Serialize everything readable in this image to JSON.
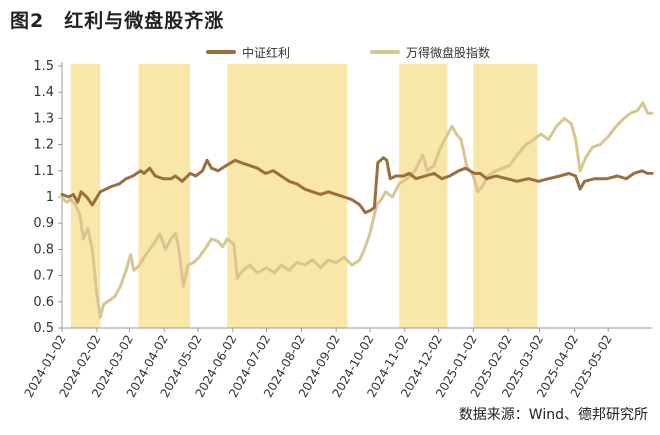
{
  "figure": {
    "title": "图2　红利与微盘股齐涨",
    "source": "数据来源：Wind、德邦研究所"
  },
  "chart_data": {
    "type": "line",
    "title": "图2　红利与微盘股齐涨",
    "xlabel": "",
    "ylabel": "",
    "ylim": [
      0.5,
      1.5
    ],
    "yticks": [
      "0.5",
      "0.6",
      "0.7",
      "0.8",
      "0.9",
      "1",
      "1.1",
      "1.2",
      "1.3",
      "1.4",
      "1.5"
    ],
    "x_ticks": [
      "2024-01-02",
      "2024-02-02",
      "2024-03-02",
      "2024-04-02",
      "2024-05-02",
      "2024-06-02",
      "2024-07-02",
      "2024-08-02",
      "2024-09-02",
      "2024-10-02",
      "2024-11-02",
      "2024-12-02",
      "2025-01-02",
      "2025-02-02",
      "2025-03-02",
      "2025-04-02",
      "2025-05-02"
    ],
    "x_range": [
      "2024-01-02",
      "2025-06-10"
    ],
    "grid": false,
    "legend_position": "top",
    "highlight_periods": [
      [
        "2024-01-10",
        "2024-02-05"
      ],
      [
        "2024-03-10",
        "2024-04-25"
      ],
      [
        "2024-05-28",
        "2024-09-12"
      ],
      [
        "2024-10-28",
        "2024-12-10"
      ],
      [
        "2025-01-02",
        "2025-02-28"
      ]
    ],
    "series": [
      {
        "name": "中证红利",
        "color": "#9a6e3e",
        "points": [
          [
            "2024-01-02",
            1.01
          ],
          [
            "2024-01-08",
            1.0
          ],
          [
            "2024-01-12",
            1.01
          ],
          [
            "2024-01-16",
            0.98
          ],
          [
            "2024-01-19",
            1.02
          ],
          [
            "2024-01-24",
            1.0
          ],
          [
            "2024-01-29",
            0.97
          ],
          [
            "2024-02-05",
            1.02
          ],
          [
            "2024-02-15",
            1.04
          ],
          [
            "2024-02-22",
            1.05
          ],
          [
            "2024-02-28",
            1.07
          ],
          [
            "2024-03-05",
            1.08
          ],
          [
            "2024-03-12",
            1.1
          ],
          [
            "2024-03-15",
            1.09
          ],
          [
            "2024-03-20",
            1.11
          ],
          [
            "2024-03-25",
            1.08
          ],
          [
            "2024-04-01",
            1.07
          ],
          [
            "2024-04-08",
            1.07
          ],
          [
            "2024-04-12",
            1.08
          ],
          [
            "2024-04-18",
            1.06
          ],
          [
            "2024-04-25",
            1.09
          ],
          [
            "2024-04-30",
            1.08
          ],
          [
            "2024-05-06",
            1.1
          ],
          [
            "2024-05-10",
            1.14
          ],
          [
            "2024-05-14",
            1.11
          ],
          [
            "2024-05-20",
            1.1
          ],
          [
            "2024-05-27",
            1.12
          ],
          [
            "2024-06-04",
            1.14
          ],
          [
            "2024-06-10",
            1.13
          ],
          [
            "2024-06-17",
            1.12
          ],
          [
            "2024-06-24",
            1.11
          ],
          [
            "2024-07-01",
            1.09
          ],
          [
            "2024-07-08",
            1.1
          ],
          [
            "2024-07-15",
            1.08
          ],
          [
            "2024-07-22",
            1.06
          ],
          [
            "2024-07-29",
            1.05
          ],
          [
            "2024-08-05",
            1.03
          ],
          [
            "2024-08-12",
            1.02
          ],
          [
            "2024-08-19",
            1.01
          ],
          [
            "2024-08-26",
            1.02
          ],
          [
            "2024-09-02",
            1.01
          ],
          [
            "2024-09-09",
            1.0
          ],
          [
            "2024-09-16",
            0.99
          ],
          [
            "2024-09-23",
            0.97
          ],
          [
            "2024-09-28",
            0.94
          ],
          [
            "2024-10-03",
            0.95
          ],
          [
            "2024-10-06",
            0.96
          ],
          [
            "2024-10-09",
            1.13
          ],
          [
            "2024-10-14",
            1.15
          ],
          [
            "2024-10-17",
            1.14
          ],
          [
            "2024-10-20",
            1.07
          ],
          [
            "2024-10-25",
            1.08
          ],
          [
            "2024-11-01",
            1.08
          ],
          [
            "2024-11-06",
            1.09
          ],
          [
            "2024-11-12",
            1.07
          ],
          [
            "2024-11-20",
            1.08
          ],
          [
            "2024-11-28",
            1.09
          ],
          [
            "2024-12-05",
            1.07
          ],
          [
            "2024-12-12",
            1.08
          ],
          [
            "2024-12-20",
            1.1
          ],
          [
            "2024-12-26",
            1.11
          ],
          [
            "2025-01-03",
            1.09
          ],
          [
            "2025-01-08",
            1.09
          ],
          [
            "2025-01-14",
            1.07
          ],
          [
            "2025-01-22",
            1.08
          ],
          [
            "2025-02-01",
            1.07
          ],
          [
            "2025-02-10",
            1.06
          ],
          [
            "2025-02-20",
            1.07
          ],
          [
            "2025-03-01",
            1.06
          ],
          [
            "2025-03-10",
            1.07
          ],
          [
            "2025-03-20",
            1.08
          ],
          [
            "2025-03-28",
            1.09
          ],
          [
            "2025-04-03",
            1.08
          ],
          [
            "2025-04-07",
            1.03
          ],
          [
            "2025-04-11",
            1.06
          ],
          [
            "2025-04-20",
            1.07
          ],
          [
            "2025-05-01",
            1.07
          ],
          [
            "2025-05-10",
            1.08
          ],
          [
            "2025-05-18",
            1.07
          ],
          [
            "2025-05-25",
            1.09
          ],
          [
            "2025-06-01",
            1.1
          ],
          [
            "2025-06-06",
            1.09
          ],
          [
            "2025-06-10",
            1.09
          ]
        ]
      },
      {
        "name": "万得微盘股指数",
        "color": "#d9c592",
        "points": [
          [
            "2024-01-02",
            1.0
          ],
          [
            "2024-01-06",
            0.98
          ],
          [
            "2024-01-10",
            0.99
          ],
          [
            "2024-01-14",
            0.97
          ],
          [
            "2024-01-18",
            0.93
          ],
          [
            "2024-01-21",
            0.84
          ],
          [
            "2024-01-25",
            0.88
          ],
          [
            "2024-01-29",
            0.8
          ],
          [
            "2024-02-02",
            0.63
          ],
          [
            "2024-02-05",
            0.54
          ],
          [
            "2024-02-08",
            0.59
          ],
          [
            "2024-02-18",
            0.62
          ],
          [
            "2024-02-23",
            0.66
          ],
          [
            "2024-02-28",
            0.72
          ],
          [
            "2024-03-03",
            0.78
          ],
          [
            "2024-03-06",
            0.72
          ],
          [
            "2024-03-11",
            0.74
          ],
          [
            "2024-03-15",
            0.77
          ],
          [
            "2024-03-20",
            0.8
          ],
          [
            "2024-03-25",
            0.83
          ],
          [
            "2024-03-29",
            0.86
          ],
          [
            "2024-04-03",
            0.8
          ],
          [
            "2024-04-08",
            0.84
          ],
          [
            "2024-04-12",
            0.86
          ],
          [
            "2024-04-15",
            0.8
          ],
          [
            "2024-04-19",
            0.66
          ],
          [
            "2024-04-23",
            0.74
          ],
          [
            "2024-04-28",
            0.75
          ],
          [
            "2024-05-03",
            0.77
          ],
          [
            "2024-05-08",
            0.8
          ],
          [
            "2024-05-14",
            0.84
          ],
          [
            "2024-05-20",
            0.83
          ],
          [
            "2024-05-24",
            0.81
          ],
          [
            "2024-05-28",
            0.84
          ],
          [
            "2024-06-03",
            0.82
          ],
          [
            "2024-06-06",
            0.69
          ],
          [
            "2024-06-11",
            0.72
          ],
          [
            "2024-06-17",
            0.74
          ],
          [
            "2024-06-24",
            0.71
          ],
          [
            "2024-07-02",
            0.73
          ],
          [
            "2024-07-09",
            0.71
          ],
          [
            "2024-07-15",
            0.74
          ],
          [
            "2024-07-22",
            0.72
          ],
          [
            "2024-07-29",
            0.75
          ],
          [
            "2024-08-05",
            0.74
          ],
          [
            "2024-08-12",
            0.76
          ],
          [
            "2024-08-19",
            0.73
          ],
          [
            "2024-08-26",
            0.76
          ],
          [
            "2024-09-02",
            0.75
          ],
          [
            "2024-09-09",
            0.77
          ],
          [
            "2024-09-16",
            0.74
          ],
          [
            "2024-09-23",
            0.76
          ],
          [
            "2024-09-27",
            0.8
          ],
          [
            "2024-10-02",
            0.86
          ],
          [
            "2024-10-08",
            0.97
          ],
          [
            "2024-10-12",
            0.99
          ],
          [
            "2024-10-16",
            1.02
          ],
          [
            "2024-10-22",
            1.0
          ],
          [
            "2024-10-28",
            1.05
          ],
          [
            "2024-11-04",
            1.07
          ],
          [
            "2024-11-11",
            1.1
          ],
          [
            "2024-11-18",
            1.16
          ],
          [
            "2024-11-22",
            1.1
          ],
          [
            "2024-11-28",
            1.12
          ],
          [
            "2024-12-03",
            1.18
          ],
          [
            "2024-12-09",
            1.23
          ],
          [
            "2024-12-14",
            1.27
          ],
          [
            "2024-12-18",
            1.24
          ],
          [
            "2024-12-22",
            1.22
          ],
          [
            "2024-12-27",
            1.12
          ],
          [
            "2025-01-02",
            1.08
          ],
          [
            "2025-01-06",
            1.02
          ],
          [
            "2025-01-10",
            1.04
          ],
          [
            "2025-01-15",
            1.08
          ],
          [
            "2025-01-22",
            1.1
          ],
          [
            "2025-02-03",
            1.12
          ],
          [
            "2025-02-10",
            1.16
          ],
          [
            "2025-02-18",
            1.2
          ],
          [
            "2025-02-25",
            1.22
          ],
          [
            "2025-03-03",
            1.24
          ],
          [
            "2025-03-10",
            1.22
          ],
          [
            "2025-03-17",
            1.27
          ],
          [
            "2025-03-24",
            1.3
          ],
          [
            "2025-03-30",
            1.28
          ],
          [
            "2025-04-03",
            1.22
          ],
          [
            "2025-04-07",
            1.1
          ],
          [
            "2025-04-12",
            1.15
          ],
          [
            "2025-04-18",
            1.19
          ],
          [
            "2025-04-25",
            1.2
          ],
          [
            "2025-05-02",
            1.23
          ],
          [
            "2025-05-09",
            1.27
          ],
          [
            "2025-05-16",
            1.3
          ],
          [
            "2025-05-22",
            1.32
          ],
          [
            "2025-05-28",
            1.33
          ],
          [
            "2025-06-02",
            1.36
          ],
          [
            "2025-06-06",
            1.32
          ],
          [
            "2025-06-10",
            1.32
          ]
        ]
      }
    ]
  }
}
